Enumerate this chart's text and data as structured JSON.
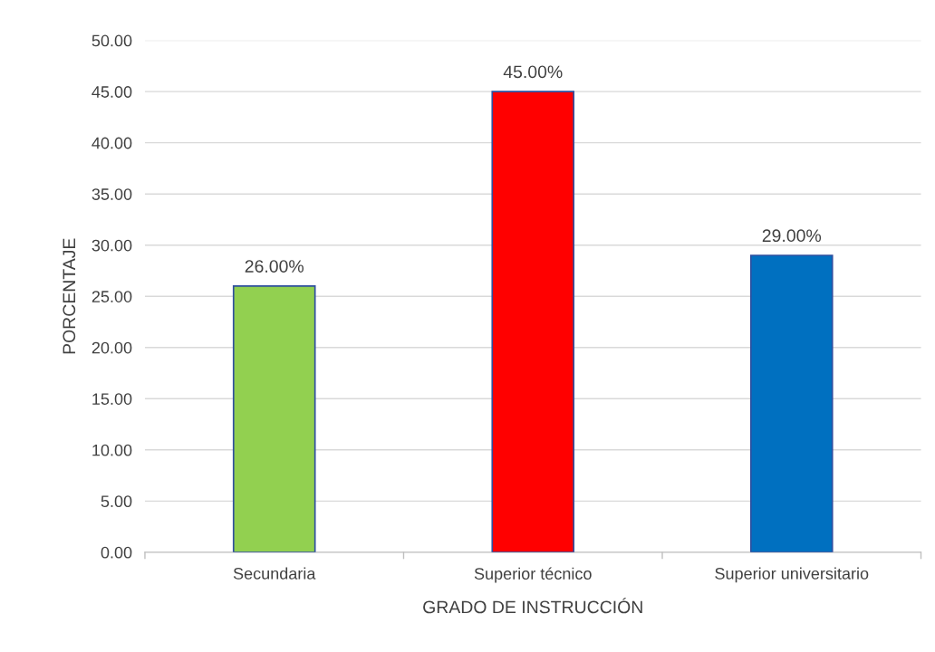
{
  "chart_data": {
    "type": "bar",
    "xlabel": "GRADO DE INSTRUCCIÓN",
    "ylabel": "PORCENTAJE",
    "categories": [
      "Secundaria",
      "Superior técnico",
      "Superior universitario"
    ],
    "values": [
      26,
      45,
      29
    ],
    "colors": [
      "#92d050",
      "#ff0000",
      "#0070c0"
    ],
    "value_labels": [
      "26.00%",
      "45.00%",
      "29.00%"
    ],
    "ylim": [
      0,
      50
    ],
    "yticks": [
      {
        "value": 0,
        "label": "0.00"
      },
      {
        "value": 5,
        "label": "5.00"
      },
      {
        "value": 10,
        "label": "10.00"
      },
      {
        "value": 15,
        "label": "15.00"
      },
      {
        "value": 20,
        "label": "20.00"
      },
      {
        "value": 25,
        "label": "25.00"
      },
      {
        "value": 30,
        "label": "30.00"
      },
      {
        "value": 35,
        "label": "35.00"
      },
      {
        "value": 40,
        "label": "40.00"
      },
      {
        "value": 45,
        "label": "45.00"
      },
      {
        "value": 50,
        "label": "50.00"
      }
    ],
    "grid": "y",
    "legend": false
  }
}
